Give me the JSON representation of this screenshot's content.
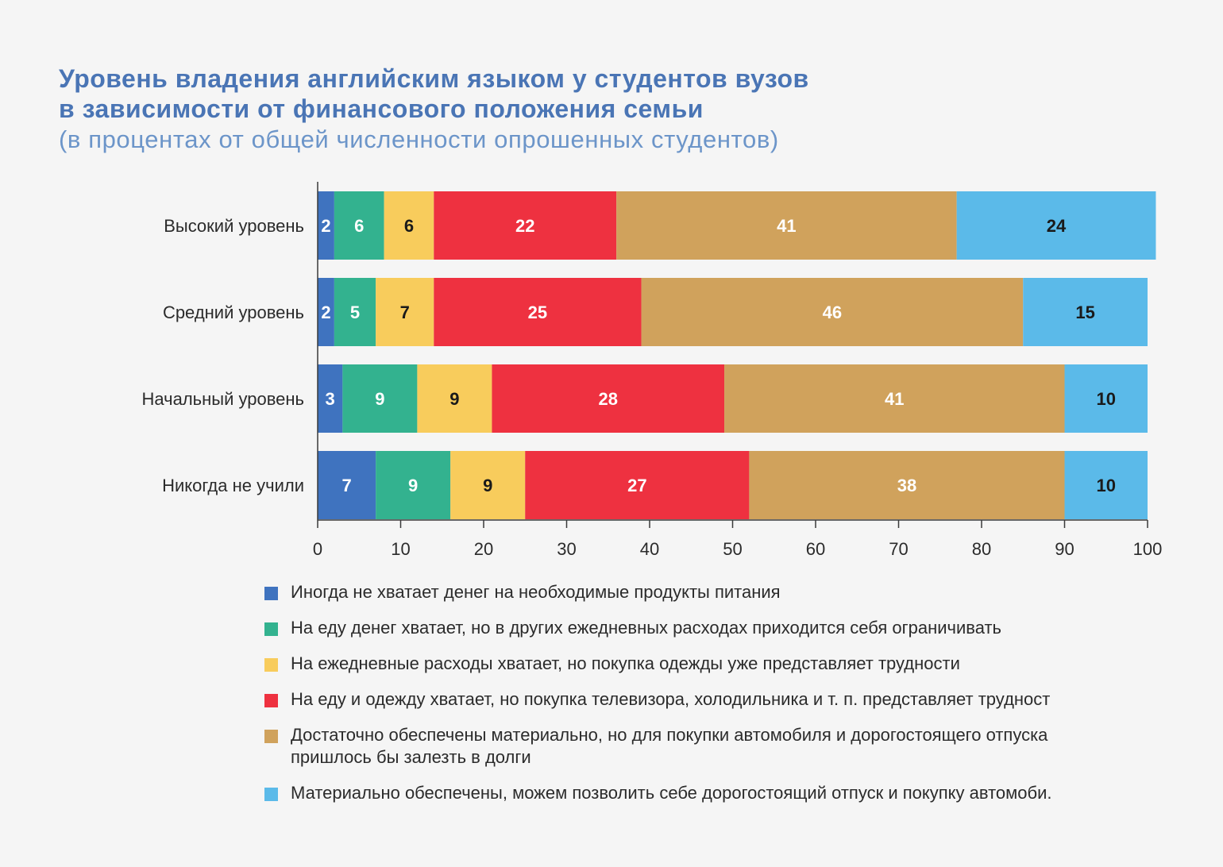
{
  "title": {
    "line1": "Уровень владения английским языком у студентов вузов",
    "line2": "в зависимости от финансового положения семьи",
    "subtitle": "(в процентах от общей численности опрошенных студентов)"
  },
  "chart_data": {
    "type": "bar",
    "orientation": "horizontal",
    "stacked": true,
    "categories": [
      "Высокий уровень",
      "Средний уровень",
      "Начальный уровень",
      "Никогда не учили"
    ],
    "xlim": [
      0,
      100
    ],
    "xticks": [
      0,
      10,
      20,
      30,
      40,
      50,
      60,
      70,
      80,
      90,
      100
    ],
    "grid": false,
    "legend_position": "bottom",
    "series": [
      {
        "name": "Иногда не хватает денег на необходимые продукты питания",
        "color": "#3f73bf",
        "label_color": "#ffffff",
        "values": [
          2,
          2,
          3,
          7
        ]
      },
      {
        "name": "На еду денег хватает, но в других ежедневных расходах приходится себя ограничивать",
        "color": "#33b28f",
        "label_color": "#ffffff",
        "values": [
          6,
          5,
          9,
          9
        ]
      },
      {
        "name": "На ежедневные расходы хватает, но покупка одежды уже представляет трудности",
        "color": "#f8cc5c",
        "label_color": "#1a1a1a",
        "values": [
          6,
          7,
          9,
          9
        ]
      },
      {
        "name": "На еду и одежду хватает, но покупка телевизора, холодильника и т. п. представляет трудност",
        "color": "#ee3140",
        "label_color": "#ffffff",
        "values": [
          22,
          25,
          28,
          27
        ]
      },
      {
        "name": "Достаточно обеспечены материально, но для покупки автомобиля и дорогостоящего отпуска\nпришлось бы залезть в долги",
        "color": "#d0a25c",
        "label_color": "#ffffff",
        "values": [
          41,
          46,
          41,
          38
        ]
      },
      {
        "name": "Материально обеспечены, можем позволить себе дорогостоящий отпуск и покупку автомоби.",
        "color": "#5bbae9",
        "label_color": "#1a1a1a",
        "values": [
          24,
          15,
          10,
          10
        ]
      }
    ]
  }
}
